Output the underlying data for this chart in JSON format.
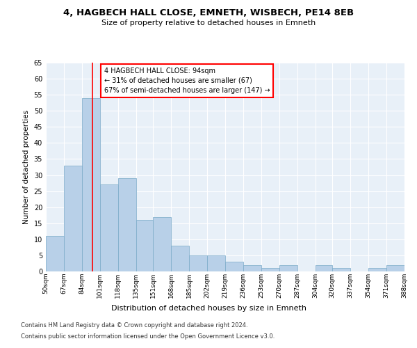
{
  "title": "4, HAGBECH HALL CLOSE, EMNETH, WISBECH, PE14 8EB",
  "subtitle": "Size of property relative to detached houses in Emneth",
  "xlabel": "Distribution of detached houses by size in Emneth",
  "ylabel": "Number of detached properties",
  "bar_color": "#b8d0e8",
  "bar_edge_color": "#7aaac8",
  "background_color": "#e8f0f8",
  "property_line_x": 94,
  "annotation_text": "4 HAGBECH HALL CLOSE: 94sqm\n← 31% of detached houses are smaller (67)\n67% of semi-detached houses are larger (147) →",
  "footer_line1": "Contains HM Land Registry data © Crown copyright and database right 2024.",
  "footer_line2": "Contains public sector information licensed under the Open Government Licence v3.0.",
  "bins": [
    50,
    67,
    84,
    101,
    118,
    135,
    151,
    168,
    185,
    202,
    219,
    236,
    253,
    270,
    287,
    304,
    320,
    337,
    354,
    371,
    388
  ],
  "counts": [
    11,
    33,
    54,
    27,
    29,
    16,
    17,
    8,
    5,
    5,
    3,
    2,
    1,
    2,
    0,
    2,
    1,
    0,
    1,
    2
  ],
  "tick_labels": [
    "50sqm",
    "67sqm",
    "84sqm",
    "101sqm",
    "118sqm",
    "135sqm",
    "151sqm",
    "168sqm",
    "185sqm",
    "202sqm",
    "219sqm",
    "236sqm",
    "253sqm",
    "270sqm",
    "287sqm",
    "304sqm",
    "320sqm",
    "337sqm",
    "354sqm",
    "371sqm",
    "388sqm"
  ],
  "ylim": [
    0,
    65
  ],
  "yticks": [
    0,
    5,
    10,
    15,
    20,
    25,
    30,
    35,
    40,
    45,
    50,
    55,
    60,
    65
  ]
}
